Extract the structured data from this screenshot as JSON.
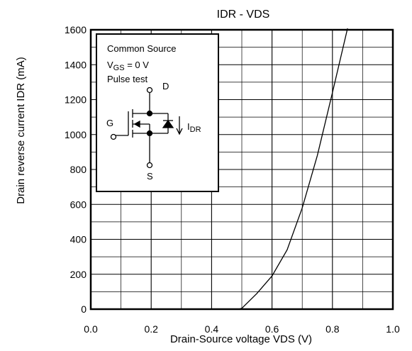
{
  "chart_data": {
    "type": "line",
    "title": "IDR - VDS",
    "xlabel": "Drain-Source voltage  VDS (V)",
    "ylabel": "Drain reverse current  IDR (mA)",
    "xlim": [
      0.0,
      1.0
    ],
    "ylim": [
      0,
      1600
    ],
    "x_major_ticks": [
      "0.0",
      "0.2",
      "0.4",
      "0.6",
      "0.8",
      "1.0"
    ],
    "y_major_ticks": [
      "0",
      "200",
      "400",
      "600",
      "800",
      "1000",
      "1200",
      "1400",
      "1600"
    ],
    "x_minor_step": 0.1,
    "y_minor_step": 100,
    "grid": true,
    "legend": "none",
    "series": [
      {
        "x": [
          0.49,
          0.5,
          0.55,
          0.6,
          0.65,
          0.7,
          0.75,
          0.8,
          0.85
        ],
        "y": [
          0,
          5,
          90,
          190,
          340,
          580,
          880,
          1240,
          1610
        ],
        "color": "#000000"
      }
    ],
    "inset": {
      "line1": "Common Source",
      "vgs_main": "V",
      "vgs_sub": "GS",
      "vgs_rest": " = 0 V",
      "line3": "Pulse test",
      "pin_d": "D",
      "pin_g": "G",
      "pin_s": "S",
      "idr_main": "I",
      "idr_sub": "DR"
    }
  }
}
